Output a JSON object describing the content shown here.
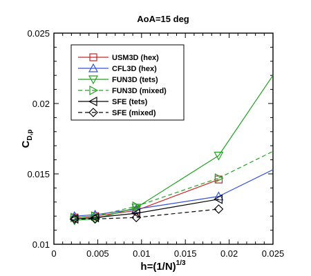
{
  "chart_data": {
    "type": "line",
    "title": "AoA=15 deg",
    "xlabel_main": "h=(1/N)",
    "xlabel_sup": "1/3",
    "ylabel_main": "C",
    "ylabel_sub": "D,p",
    "xlim": [
      0,
      0.025
    ],
    "ylim": [
      0.01,
      0.025
    ],
    "xticks": [
      0,
      0.005,
      0.01,
      0.015,
      0.02,
      0.025
    ],
    "xtick_labels": [
      "0",
      "0.005",
      "0.01",
      "0.015",
      "0.02",
      "0.025"
    ],
    "yticks": [
      0.01,
      0.015,
      0.02,
      0.025
    ],
    "ytick_labels": [
      "0.01",
      "0.015",
      "0.02",
      "0.025"
    ],
    "grid": false,
    "legend_position": "upper-left",
    "series": [
      {
        "name": "USM3D (hex)",
        "color": "#cc2020",
        "dash": "solid",
        "marker": "square",
        "x": [
          0.00235,
          0.0047,
          0.0094,
          0.0188
        ],
        "y": [
          0.0119,
          0.012,
          0.0124,
          0.0146
        ],
        "extrap": null
      },
      {
        "name": "CFL3D (hex)",
        "color": "#3050d8",
        "dash": "solid",
        "marker": "triangle-up",
        "x": [
          0.00235,
          0.0047,
          0.0094,
          0.0188
        ],
        "y": [
          0.012,
          0.0121,
          0.0125,
          0.0134
        ],
        "extrap": {
          "x": 0.025,
          "y": 0.0153
        }
      },
      {
        "name": "FUN3D (tets)",
        "color": "#20a020",
        "dash": "solid",
        "marker": "triangle-down",
        "x": [
          0.00235,
          0.0047,
          0.0094,
          0.0188
        ],
        "y": [
          0.0117,
          0.0118,
          0.0126,
          0.0163
        ],
        "extrap": {
          "x": 0.025,
          "y": 0.022
        }
      },
      {
        "name": "FUN3D (mixed)",
        "color": "#20a020",
        "dash": "dashed",
        "marker": "triangle-right",
        "x": [
          0.00235,
          0.0047,
          0.0094,
          0.0188
        ],
        "y": [
          0.0119,
          0.012,
          0.0127,
          0.0147
        ],
        "extrap": {
          "x": 0.025,
          "y": 0.0166
        }
      },
      {
        "name": "SFE (tets)",
        "color": "#000000",
        "dash": "solid",
        "marker": "triangle-left",
        "x": [
          0.00235,
          0.0047,
          0.0094,
          0.0188
        ],
        "y": [
          0.0118,
          0.0119,
          0.0122,
          0.0132
        ],
        "extrap": null
      },
      {
        "name": "SFE (mixed)",
        "color": "#000000",
        "dash": "dashed",
        "marker": "diamond",
        "x": [
          0.00235,
          0.0047,
          0.0094,
          0.0188
        ],
        "y": [
          0.0118,
          0.0118,
          0.0119,
          0.0125
        ],
        "extrap": null
      }
    ]
  }
}
